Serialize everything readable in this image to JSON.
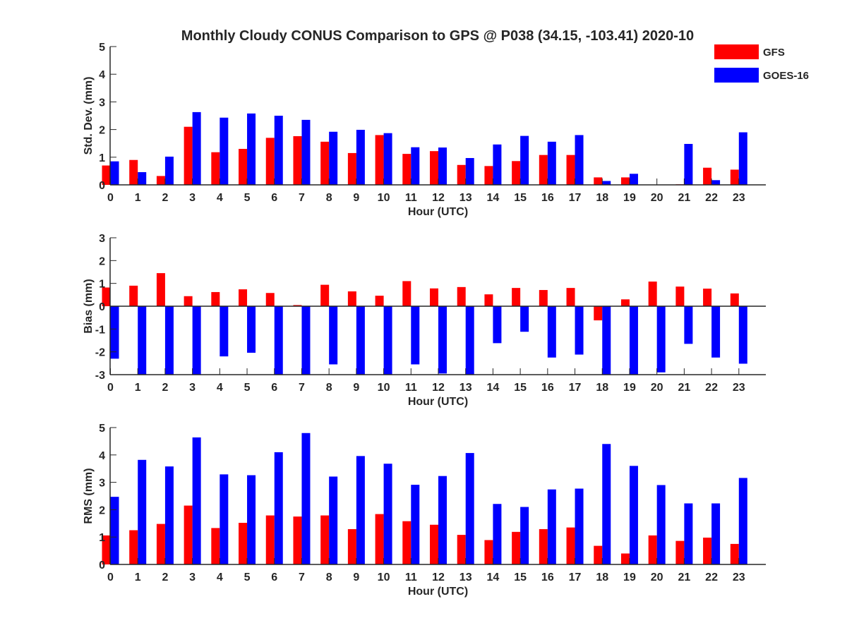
{
  "figure": {
    "title": "Monthly Cloudy CONUS Comparison to GPS @ P038 (34.15, -103.41) 2020-10"
  },
  "legend": [
    {
      "label": "GFS",
      "color": "#ff0000"
    },
    {
      "label": "GOES-16",
      "color": "#0000ff"
    }
  ],
  "chart_data": [
    {
      "type": "bar",
      "xlabel": "Hour (UTC)",
      "ylabel": "Std. Dev. (mm)",
      "ylim": [
        0,
        5
      ],
      "yticks": [
        0,
        1,
        2,
        3,
        4,
        5
      ],
      "categories": [
        "0",
        "1",
        "2",
        "3",
        "4",
        "5",
        "6",
        "7",
        "8",
        "9",
        "10",
        "11",
        "12",
        "13",
        "14",
        "15",
        "16",
        "17",
        "18",
        "19",
        "20",
        "21",
        "22",
        "23"
      ],
      "series": [
        {
          "name": "GFS",
          "color": "#ff0000",
          "values": [
            0.7,
            0.9,
            0.32,
            2.1,
            1.18,
            1.3,
            1.7,
            1.76,
            1.56,
            1.15,
            1.8,
            1.12,
            1.22,
            0.72,
            0.68,
            0.86,
            1.08,
            1.08,
            0.27,
            0.27,
            0.0,
            0.02,
            0.62,
            0.55
          ]
        },
        {
          "name": "GOES-16",
          "color": "#0000ff",
          "values": [
            0.85,
            0.46,
            1.02,
            2.63,
            2.43,
            2.58,
            2.5,
            2.35,
            1.92,
            1.99,
            1.87,
            1.36,
            1.35,
            0.97,
            1.46,
            1.77,
            1.56,
            1.8,
            0.14,
            0.4,
            0.0,
            1.48,
            0.17,
            1.9
          ]
        }
      ]
    },
    {
      "type": "bar",
      "xlabel": "Hour (UTC)",
      "ylabel": "Bias (mm)",
      "ylim": [
        -3,
        3
      ],
      "yticks": [
        -3,
        -2,
        -1,
        0,
        1,
        2,
        3
      ],
      "categories": [
        "0",
        "1",
        "2",
        "3",
        "4",
        "5",
        "6",
        "7",
        "8",
        "9",
        "10",
        "11",
        "12",
        "13",
        "14",
        "15",
        "16",
        "17",
        "18",
        "19",
        "20",
        "21",
        "22",
        "23"
      ],
      "series": [
        {
          "name": "GFS",
          "color": "#ff0000",
          "values": [
            0.82,
            0.9,
            1.45,
            0.44,
            0.62,
            0.74,
            0.58,
            0.05,
            0.94,
            0.65,
            0.46,
            1.1,
            0.78,
            0.84,
            0.52,
            0.8,
            0.71,
            0.8,
            -0.62,
            0.3,
            1.08,
            0.86,
            0.77,
            0.56
          ]
        },
        {
          "name": "GOES-16",
          "color": "#0000ff",
          "values": [
            -2.3,
            -3.0,
            -3.0,
            -3.0,
            -2.2,
            -2.04,
            -3.0,
            -3.0,
            -2.55,
            -3.0,
            -3.0,
            -2.55,
            -2.95,
            -3.0,
            -1.62,
            -1.12,
            -2.25,
            -2.12,
            -3.0,
            -3.0,
            -2.9,
            -1.65,
            -2.25,
            -2.52
          ]
        }
      ]
    },
    {
      "type": "bar",
      "xlabel": "Hour (UTC)",
      "ylabel": "RMS (mm)",
      "ylim": [
        0,
        5
      ],
      "yticks": [
        0,
        1,
        2,
        3,
        4,
        5
      ],
      "categories": [
        "0",
        "1",
        "2",
        "3",
        "4",
        "5",
        "6",
        "7",
        "8",
        "9",
        "10",
        "11",
        "12",
        "13",
        "14",
        "15",
        "16",
        "17",
        "18",
        "19",
        "20",
        "21",
        "22",
        "23"
      ],
      "series": [
        {
          "name": "GFS",
          "color": "#ff0000",
          "values": [
            1.06,
            1.25,
            1.48,
            2.15,
            1.33,
            1.52,
            1.79,
            1.75,
            1.79,
            1.29,
            1.84,
            1.58,
            1.45,
            1.08,
            0.89,
            1.19,
            1.29,
            1.35,
            0.68,
            0.4,
            1.06,
            0.86,
            0.98,
            0.75
          ]
        },
        {
          "name": "GOES-16",
          "color": "#0000ff",
          "values": [
            2.47,
            3.82,
            3.58,
            4.64,
            3.29,
            3.26,
            4.1,
            4.8,
            3.21,
            3.96,
            3.68,
            2.91,
            3.23,
            4.07,
            2.21,
            2.1,
            2.74,
            2.77,
            4.4,
            3.6,
            2.9,
            2.23,
            2.23,
            3.16
          ]
        }
      ]
    }
  ]
}
